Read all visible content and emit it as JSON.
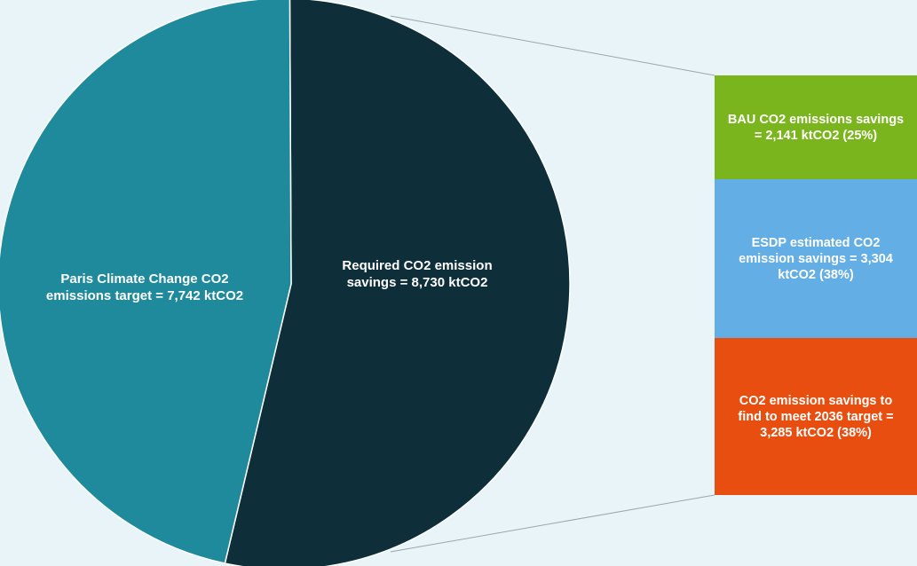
{
  "chart_data": {
    "type": "bar-of-pie",
    "pie": {
      "slices": [
        {
          "label": "Paris Climate Change CO2 emissions target = 7,742 ktCO2",
          "value": 7742,
          "color": "#1f8a9c"
        },
        {
          "label": "Required CO2 emission savings = 8,730 ktCO2",
          "value": 8730,
          "color": "#0e2e3a"
        }
      ]
    },
    "breakdown_of": "Required CO2 emission savings",
    "bar": {
      "segments": [
        {
          "label": "BAU CO2 emissions savings =  2,141 ktCO2 (25%)",
          "value": 2141,
          "percent": 25,
          "color": "#7ab51d"
        },
        {
          "label": "ESDP estimated CO2 emission savings = 3,304 ktCO2 (38%)",
          "value": 3304,
          "percent": 38,
          "color": "#64aee6"
        },
        {
          "label": "CO2 emission savings to find to meet 2036 target = 3,285 ktCO2 (38%)",
          "value": 3285,
          "percent": 38,
          "color": "#e84e0f"
        }
      ]
    }
  }
}
